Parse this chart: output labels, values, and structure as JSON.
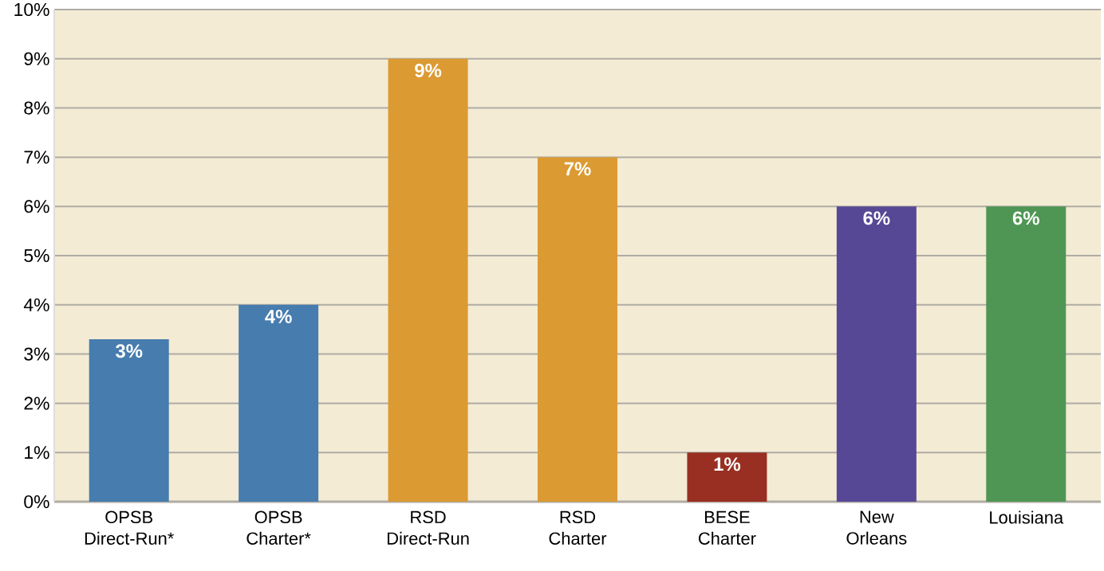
{
  "chart_data": {
    "type": "bar",
    "categories": [
      "OPSB Direct-Run*",
      "OPSB Charter*",
      "RSD Direct-Run",
      "RSD Charter",
      "BESE Charter",
      "New Orleans",
      "Louisiana"
    ],
    "values": [
      3.3,
      4.0,
      9.0,
      7.0,
      1.0,
      6.0,
      6.0
    ],
    "value_labels": [
      "3%",
      "4%",
      "9%",
      "7%",
      "1%",
      "6%",
      "6%"
    ],
    "colors": [
      "#477cae",
      "#477cae",
      "#db9a32",
      "#db9a32",
      "#982f22",
      "#574896",
      "#4f9654"
    ],
    "ylim": [
      0,
      10
    ],
    "yticks": [
      {
        "value": 0,
        "label": "0%"
      },
      {
        "value": 1,
        "label": "1%"
      },
      {
        "value": 2,
        "label": "2%"
      },
      {
        "value": 3,
        "label": "3%"
      },
      {
        "value": 4,
        "label": "4%"
      },
      {
        "value": 5,
        "label": "5%"
      },
      {
        "value": 6,
        "label": "6%"
      },
      {
        "value": 7,
        "label": "7%"
      },
      {
        "value": 8,
        "label": "8%"
      },
      {
        "value": 9,
        "label": "9%"
      },
      {
        "value": 10,
        "label": "10%"
      }
    ],
    "grid": "y"
  }
}
